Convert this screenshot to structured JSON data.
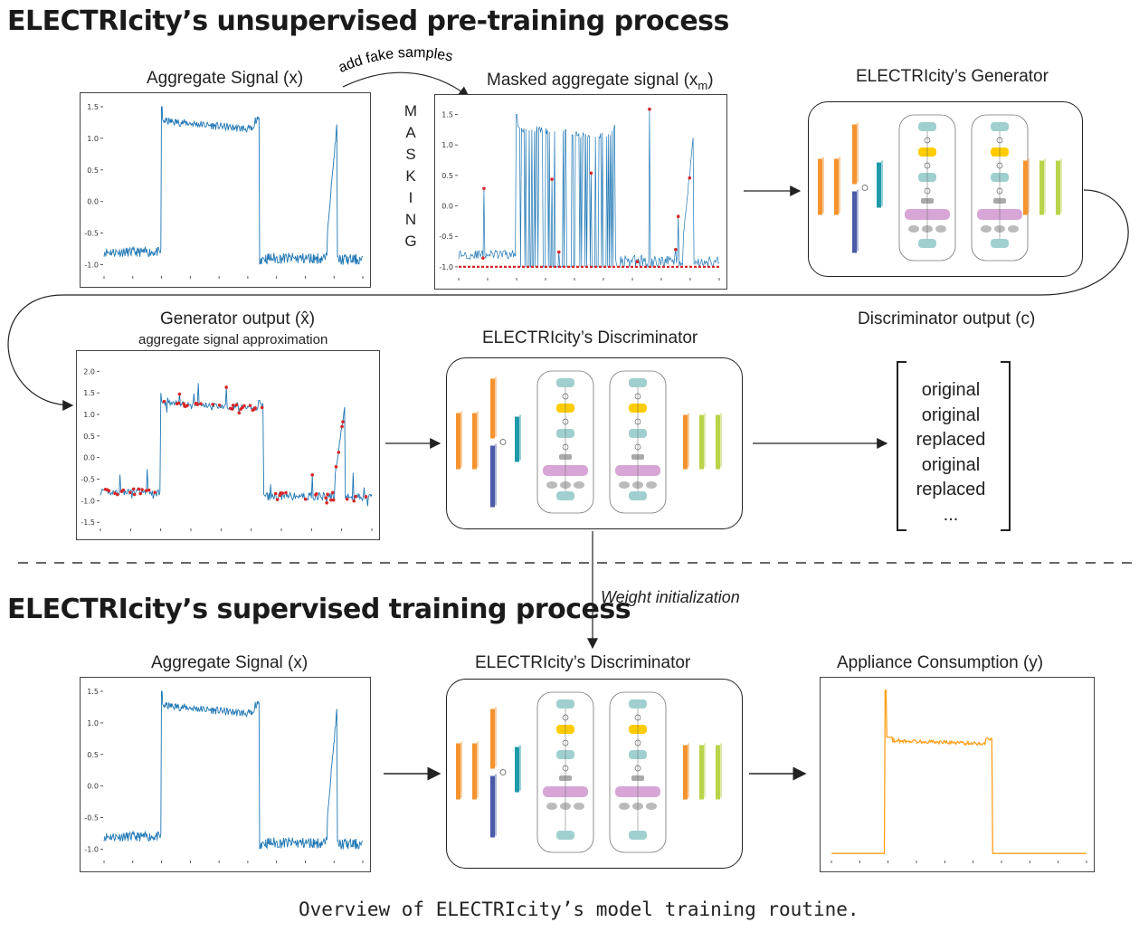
{
  "sections": {
    "pretraining_title": "ELECTRIcity’s unsupervised pre-training process",
    "supervised_title": "ELECTRIcity’s supervised training process"
  },
  "labels": {
    "aggregate_signal": "Aggregate Signal (x)",
    "add_fake_samples": "add fake samples",
    "masked_signal": "Masked aggregate signal (x",
    "masked_signal_sub": "m",
    "masked_signal_close": ")",
    "generator_title": "ELECTRIcity’s Generator",
    "generator_output": "Generator output (x̂)",
    "generator_output_sub": "aggregate signal approximation",
    "discriminator_title": "ELECTRIcity’s Discriminator",
    "discriminator_output": "Discriminator output (c)",
    "weight_init": "Weight initialization",
    "aggregate_signal_2": "Aggregate Signal (x)",
    "discriminator_title_2": "ELECTRIcity’s Discriminator",
    "appliance_consumption": "Appliance Consumption (y)"
  },
  "masking_letters": [
    "M",
    "A",
    "S",
    "K",
    "I",
    "N",
    "G"
  ],
  "discriminator_outputs": [
    "original",
    "original",
    "replaced",
    "original",
    "replaced",
    "..."
  ],
  "caption": "Overview of ELECTRIcity’s model training routine.",
  "colors": {
    "signal_blue": "#1f77b4",
    "marker_red": "#d62728",
    "appliance_orange": "#ff9f1a",
    "block_orange": "#f5932f",
    "block_blue": "#4a5aa8",
    "block_teal": "#1f9aa8",
    "block_green": "#b9d34a",
    "block_mint": "#9fd0cf",
    "block_yellow": "#ffcc00",
    "block_purple": "#d7a6d6"
  },
  "chart_data": [
    {
      "type": "line",
      "title": "Aggregate Signal (x)",
      "yticks": [
        1.5,
        1.0,
        0.5,
        0.0,
        -0.5,
        -1.0
      ],
      "ylim": [
        -1.15,
        1.6
      ]
    },
    {
      "type": "line",
      "title": "Masked aggregate signal (x_m)",
      "yticks": [
        1.5,
        1.0,
        0.5,
        0.0,
        -0.5,
        -1.0
      ],
      "ylim": [
        -1.15,
        1.7
      ]
    },
    {
      "type": "line",
      "title": "Generator output (x̂)",
      "yticks": [
        2.0,
        1.5,
        1.0,
        0.5,
        0.0,
        -0.5,
        -1.0,
        -1.5
      ],
      "ylim": [
        -1.6,
        2.3
      ]
    },
    {
      "type": "line",
      "title": "Aggregate Signal (x)",
      "yticks": [
        1.5,
        1.0,
        0.5,
        0.0,
        -0.5,
        -1.0
      ],
      "ylim": [
        -1.15,
        1.6
      ]
    },
    {
      "type": "line",
      "title": "Appliance Consumption (y)",
      "yticks": [],
      "ylim": [
        0,
        1
      ]
    }
  ]
}
